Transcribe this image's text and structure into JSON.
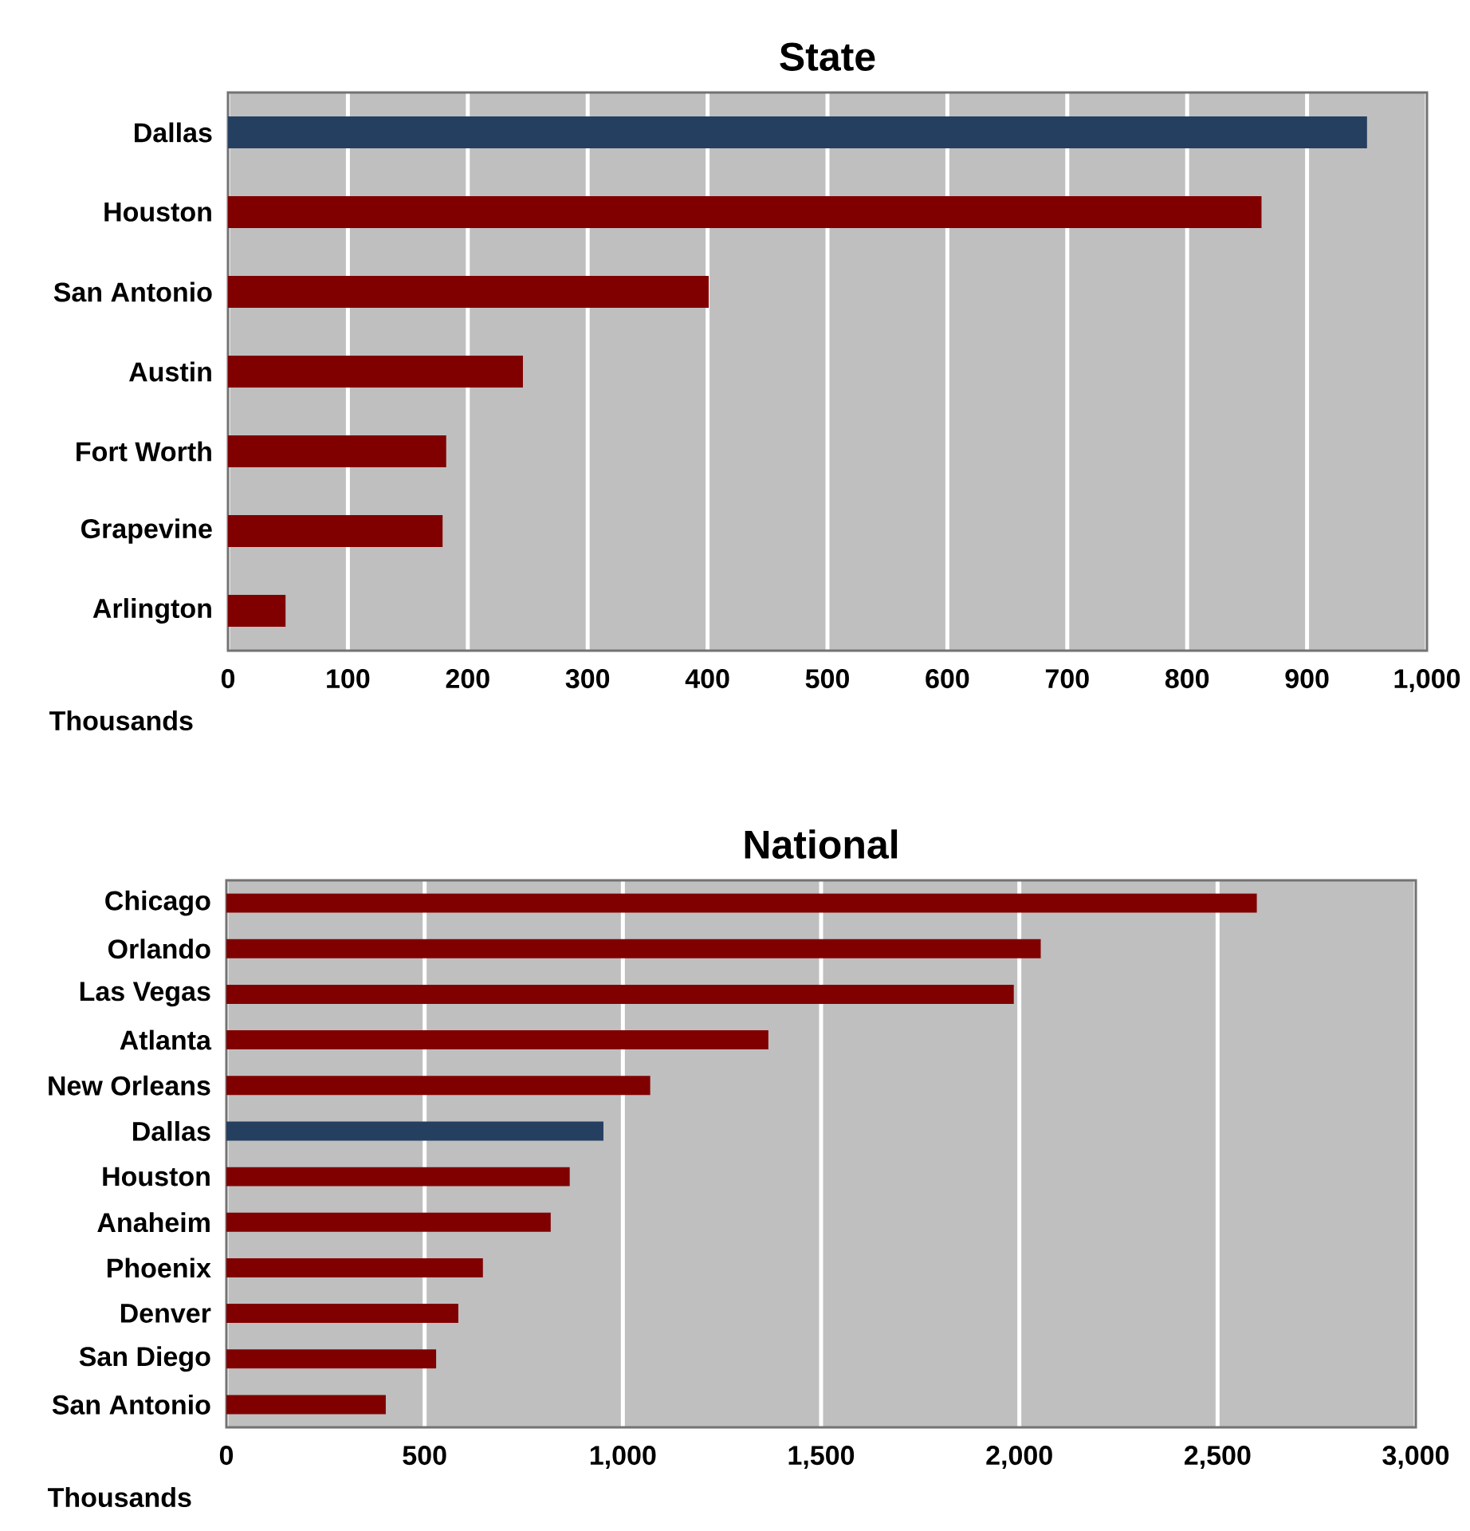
{
  "chart_data": [
    {
      "type": "bar",
      "orientation": "horizontal",
      "title": "State",
      "xlabel": "Thousands",
      "categories": [
        "Dallas",
        "Houston",
        "San Antonio",
        "Austin",
        "Fort Worth",
        "Grapevine",
        "Arlington"
      ],
      "values": [
        950,
        862,
        401,
        246,
        182,
        179,
        48
      ],
      "colors": [
        "#243f60",
        "#800000",
        "#800000",
        "#800000",
        "#800000",
        "#800000",
        "#800000"
      ],
      "xlim": [
        0,
        1000
      ],
      "xticks": [
        0,
        100,
        200,
        300,
        400,
        500,
        600,
        700,
        800,
        900,
        {
          "value": 1000,
          "label": "1,000"
        }
      ],
      "grid": "x"
    },
    {
      "type": "bar",
      "orientation": "horizontal",
      "title": "National",
      "xlabel": "Thousands",
      "categories": [
        "Chicago",
        "Orlando",
        "Las Vegas",
        "Atlanta",
        "New Orleans",
        "Dallas",
        "Houston",
        "Anaheim",
        "Phoenix",
        "Denver",
        "San Diego",
        "San Antonio"
      ],
      "values": [
        2599,
        2054,
        1986,
        1367,
        1069,
        951,
        866,
        818,
        647,
        585,
        529,
        402
      ],
      "colors": [
        "#800000",
        "#800000",
        "#800000",
        "#800000",
        "#800000",
        "#243f60",
        "#800000",
        "#800000",
        "#800000",
        "#800000",
        "#800000",
        "#800000"
      ],
      "xlim": [
        0,
        3000
      ],
      "xticks": [
        0,
        500,
        {
          "value": 1000,
          "label": "1,000"
        },
        {
          "value": 1500,
          "label": "1,500"
        },
        {
          "value": 2000,
          "label": "2,000"
        },
        {
          "value": 2500,
          "label": "2,500"
        },
        {
          "value": 3000,
          "label": "3,000"
        }
      ],
      "grid": "x"
    }
  ]
}
